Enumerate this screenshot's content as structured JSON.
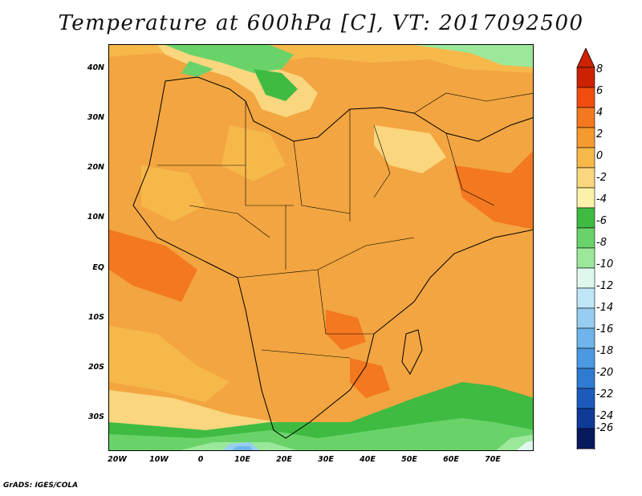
{
  "title": "Temperature at 600hPa [C], VT: 2017092500",
  "credit": "GrADS: IGES/COLA",
  "latitude_labels": [
    "40N",
    "30N",
    "20N",
    "10N",
    "EQ",
    "10S",
    "20S",
    "30S"
  ],
  "longitude_labels": [
    "20W",
    "10W",
    "0",
    "10E",
    "20E",
    "30E",
    "40E",
    "50E",
    "60E",
    "70E"
  ],
  "colorbar": {
    "levels": [
      "8",
      "6",
      "4",
      "2",
      "0",
      "-2",
      "-4",
      "-6",
      "-8",
      "-10",
      "-12",
      "-14",
      "-16",
      "-18",
      "-20",
      "-22",
      "-24",
      "-26"
    ],
    "colors": [
      "#cc2200",
      "#f04d0e",
      "#f3781f",
      "#f59a2e",
      "#f7b84a",
      "#fad67e",
      "#fbf1a8",
      "#3fbb42",
      "#69d36a",
      "#9ce89a",
      "#dff8ee",
      "#bfe6f7",
      "#96cdf0",
      "#6fb4ea",
      "#4b99e1",
      "#2f7bd1",
      "#1c5bbc",
      "#0e3a98",
      "#081a5e"
    ],
    "top_arrow_color": "#cc2200",
    "bottom_arrow_color": "#e7e0fb"
  }
}
